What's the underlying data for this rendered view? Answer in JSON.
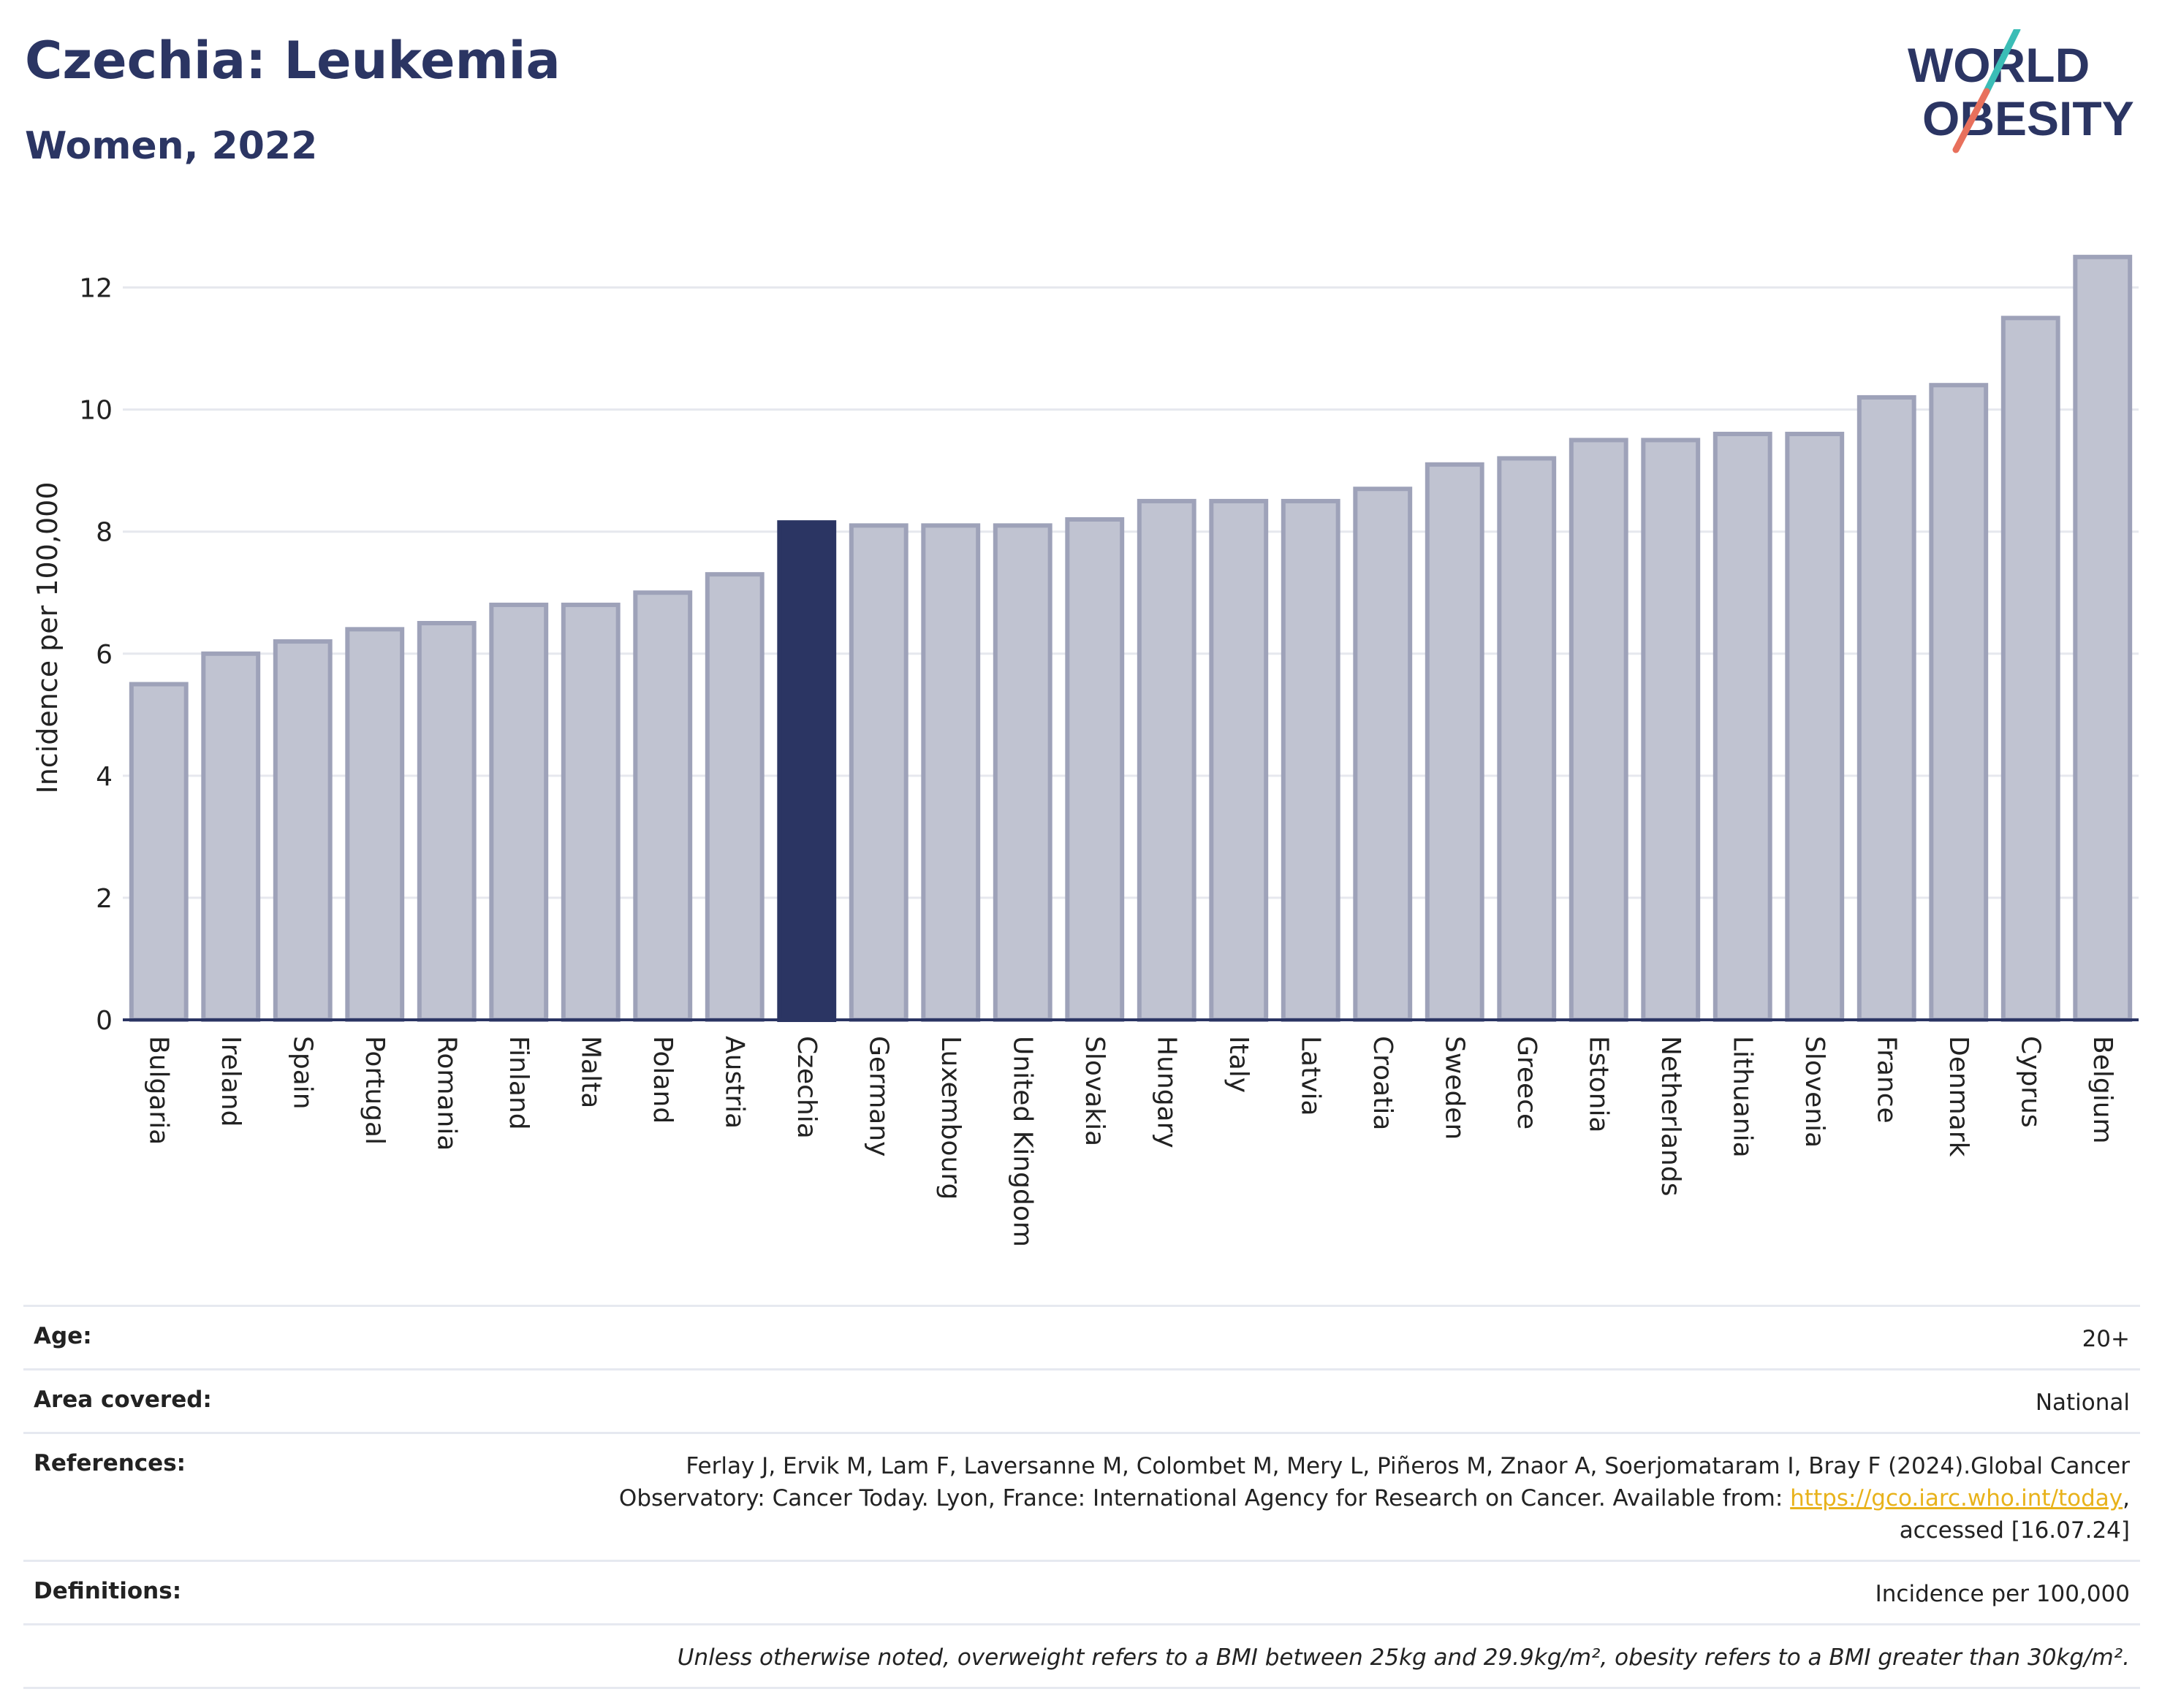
{
  "header": {
    "title": "Czechia: Leukemia",
    "subtitle": "Women, 2022"
  },
  "logo": {
    "line1": "WORLD",
    "line2": "OBESITY"
  },
  "colors": {
    "title": "#2b3563",
    "bar": "#c0c3d1",
    "bar_stroke": "#9ea2b9",
    "highlight": "#2b3563",
    "link": "#e8b21b",
    "logo_teal": "#3bbdb6",
    "logo_red": "#e8705c"
  },
  "chart_data": {
    "type": "bar",
    "categories": [
      "Bulgaria",
      "Ireland",
      "Spain",
      "Portugal",
      "Romania",
      "Finland",
      "Malta",
      "Poland",
      "Austria",
      "Czechia",
      "Germany",
      "Luxembourg",
      "United Kingdom",
      "Slovakia",
      "Hungary",
      "Italy",
      "Latvia",
      "Croatia",
      "Sweden",
      "Greece",
      "Estonia",
      "Netherlands",
      "Lithuania",
      "Slovenia",
      "France",
      "Denmark",
      "Cyprus",
      "Belgium"
    ],
    "values": [
      5.5,
      6.0,
      6.2,
      6.4,
      6.5,
      6.8,
      6.8,
      7.0,
      7.3,
      8.15,
      8.1,
      8.1,
      8.1,
      8.2,
      8.5,
      8.5,
      8.5,
      8.7,
      9.1,
      9.2,
      9.5,
      9.5,
      9.6,
      9.6,
      10.2,
      10.4,
      11.5,
      12.5
    ],
    "highlight": "Czechia",
    "title": "Czechia: Leukemia",
    "xlabel": "",
    "ylabel": "Incidence per 100,000",
    "ylim": [
      0,
      13
    ],
    "yticks": [
      0,
      2,
      4,
      6,
      8,
      10,
      12
    ],
    "grid": true
  },
  "info": {
    "age_label": "Age:",
    "age_value": "20+",
    "area_label": "Area covered:",
    "area_value": "National",
    "references_label": "References:",
    "references_text_before": "Ferlay J, Ervik M, Lam F, Laversanne M, Colombet M, Mery L, Piñeros M, Znaor A, Soerjomataram I, Bray F (2024).Global Cancer Observatory: Cancer Today. Lyon, France: International Agency for Research on Cancer. Available from: ",
    "references_link": "https://gco.iarc.who.int/today",
    "references_text_after": ", accessed [16.07.24]",
    "definitions_label": "Definitions:",
    "definitions_value": "Incidence per 100,000",
    "note": "Unless otherwise noted, overweight refers to a BMI between 25kg and 29.9kg/m², obesity refers to a BMI greater than 30kg/m²."
  }
}
